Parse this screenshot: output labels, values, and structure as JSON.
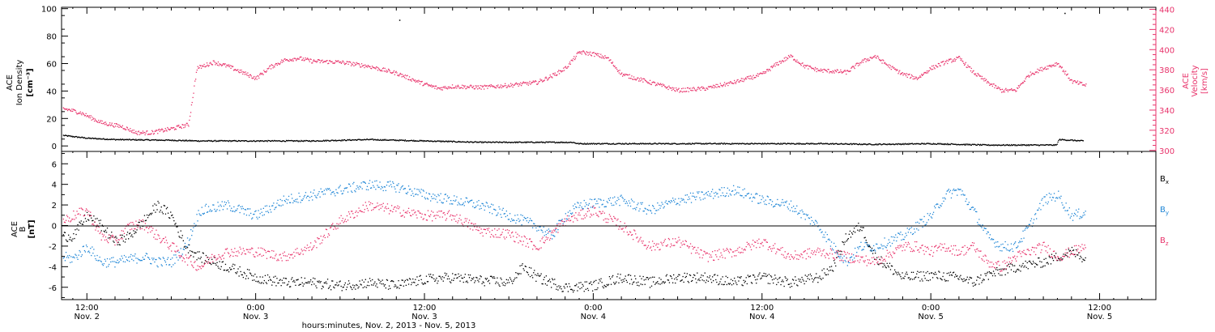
{
  "colors": {
    "density": "#000000",
    "velocity": "#e8336b",
    "bx": "#000000",
    "by": "#1f86d6",
    "bz": "#e8336b"
  },
  "x_axis": {
    "label": "hours:minutes, Nov. 2, 2013 - Nov. 5, 2013",
    "ticks": [
      {
        "h": 12,
        "time": "12:00",
        "day": "Nov. 2"
      },
      {
        "h": 24,
        "time": "0:00",
        "day": "Nov. 3"
      },
      {
        "h": 36,
        "time": "12:00",
        "day": "Nov. 3"
      },
      {
        "h": 48,
        "time": "0:00",
        "day": "Nov. 4"
      },
      {
        "h": 60,
        "time": "12:00",
        "day": "Nov. 4"
      },
      {
        "h": 72,
        "time": "0:00",
        "day": "Nov. 5"
      },
      {
        "h": 84,
        "time": "12:00",
        "day": "Nov. 5"
      }
    ]
  },
  "chart_data": [
    {
      "type": "scatter",
      "title": "",
      "x_units": "hours from 2013-11-02 00:00",
      "xlim": [
        10.2,
        88.0
      ],
      "left_axis": {
        "label_lines": [
          "ACE",
          "Ion Density",
          "[cm⁻³]"
        ],
        "ylim": [
          -4,
          101
        ],
        "ticks": [
          0,
          20,
          40,
          60,
          80,
          100
        ]
      },
      "right_axis": {
        "label_lines": [
          "ACE",
          "Velocity",
          "[km/s]"
        ],
        "ylim": [
          299,
          442
        ],
        "ticks": [
          300,
          320,
          340,
          360,
          380,
          400,
          420,
          440
        ]
      },
      "series": [
        {
          "name": "Ion Density",
          "axis": "left",
          "spread": 0.4,
          "points": [
            [
              10.3,
              8
            ],
            [
              12,
              6
            ],
            [
              14,
              5
            ],
            [
              18,
              4.5
            ],
            [
              20,
              4
            ],
            [
              24,
              4
            ],
            [
              28,
              4
            ],
            [
              32,
              5
            ],
            [
              36,
              4
            ],
            [
              40,
              3
            ],
            [
              44,
              3
            ],
            [
              46.5,
              3
            ],
            [
              46.9,
              2
            ],
            [
              48,
              2
            ],
            [
              52,
              2
            ],
            [
              56,
              2
            ],
            [
              60,
              2
            ],
            [
              64,
              2
            ],
            [
              68,
              1.5
            ],
            [
              72,
              2
            ],
            [
              76,
              1
            ],
            [
              80,
              1
            ],
            [
              80.9,
              1
            ],
            [
              81.1,
              5
            ],
            [
              82.8,
              4
            ]
          ]
        },
        {
          "name": "Velocity",
          "axis": "right",
          "spread": 2,
          "points": [
            [
              10.3,
              342
            ],
            [
              11.5,
              338
            ],
            [
              13,
              328
            ],
            [
              14.5,
              324
            ],
            [
              15.5,
              318
            ],
            [
              16.5,
              318
            ],
            [
              18,
              322
            ],
            [
              19.2,
              326
            ],
            [
              19.8,
              382
            ],
            [
              21,
              388
            ],
            [
              22,
              384
            ],
            [
              23,
              378
            ],
            [
              24,
              372
            ],
            [
              25,
              383
            ],
            [
              26,
              390
            ],
            [
              27,
              392
            ],
            [
              28,
              389
            ],
            [
              30,
              388
            ],
            [
              32,
              384
            ],
            [
              34,
              377
            ],
            [
              36,
              366
            ],
            [
              37,
              362
            ],
            [
              38,
              364
            ],
            [
              40,
              363
            ],
            [
              42,
              365
            ],
            [
              44,
              368
            ],
            [
              45,
              374
            ],
            [
              46,
              382
            ],
            [
              46.5,
              390
            ],
            [
              47,
              398
            ],
            [
              48,
              396
            ],
            [
              49,
              392
            ],
            [
              50,
              376
            ],
            [
              51,
              372
            ],
            [
              52,
              368
            ],
            [
              54,
              360
            ],
            [
              56,
              362
            ],
            [
              58,
              368
            ],
            [
              60,
              376
            ],
            [
              61,
              386
            ],
            [
              62,
              394
            ],
            [
              63,
              384
            ],
            [
              64,
              380
            ],
            [
              66,
              378
            ],
            [
              67,
              388
            ],
            [
              68,
              394
            ],
            [
              69,
              384
            ],
            [
              70,
              376
            ],
            [
              71,
              372
            ],
            [
              72,
              382
            ],
            [
              73,
              388
            ],
            [
              74,
              392
            ],
            [
              75,
              378
            ],
            [
              76,
              368
            ],
            [
              77,
              360
            ],
            [
              78,
              360
            ],
            [
              79,
              376
            ],
            [
              80,
              382
            ],
            [
              81,
              387
            ],
            [
              82,
              369
            ],
            [
              83,
              365
            ]
          ]
        }
      ],
      "outliers": [
        [
          34.2,
          92
        ],
        [
          81.5,
          97
        ]
      ]
    },
    {
      "type": "scatter",
      "title": "",
      "x_units": "hours from 2013-11-02 00:00",
      "xlim": [
        10.2,
        88.0
      ],
      "y_axis": {
        "label_lines": [
          "ACE",
          "B",
          "[nT]"
        ],
        "ylim": [
          -7.2,
          7.2
        ],
        "ticks": [
          -6,
          -4,
          -2,
          0,
          2,
          4,
          6
        ],
        "zero_line": true
      },
      "legend": {
        "placement": "right",
        "entries": [
          {
            "text": "B",
            "sub": "x",
            "color": "#000000"
          },
          {
            "text": "B",
            "sub": "y",
            "color": "#1f86d6"
          },
          {
            "text": "B",
            "sub": "z",
            "color": "#e8336b"
          }
        ]
      },
      "series": [
        {
          "name": "Bx",
          "spread": 0.5,
          "points": [
            [
              10.3,
              -1
            ],
            [
              11,
              -1
            ],
            [
              12,
              1
            ],
            [
              13,
              0
            ],
            [
              14,
              -1.5
            ],
            [
              15,
              -1
            ],
            [
              16,
              0.5
            ],
            [
              17,
              2
            ],
            [
              18,
              1
            ],
            [
              19,
              -2
            ],
            [
              20,
              -3
            ],
            [
              21,
              -3.5
            ],
            [
              22,
              -4
            ],
            [
              24,
              -5
            ],
            [
              26,
              -5.5
            ],
            [
              28,
              -5.5
            ],
            [
              30,
              -5.8
            ],
            [
              32,
              -5.5
            ],
            [
              34,
              -5.8
            ],
            [
              36,
              -5.2
            ],
            [
              38,
              -5
            ],
            [
              40,
              -5.3
            ],
            [
              42,
              -5.5
            ],
            [
              43,
              -4
            ],
            [
              44,
              -5
            ],
            [
              45,
              -5.5
            ],
            [
              46,
              -6
            ],
            [
              48,
              -5.8
            ],
            [
              50,
              -5
            ],
            [
              52,
              -5.5
            ],
            [
              54,
              -5
            ],
            [
              56,
              -5
            ],
            [
              58,
              -5.5
            ],
            [
              60,
              -5
            ],
            [
              62,
              -5.5
            ],
            [
              64,
              -5
            ],
            [
              65,
              -4
            ],
            [
              66,
              -1
            ],
            [
              67,
              0
            ],
            [
              68,
              -3
            ],
            [
              70,
              -5
            ],
            [
              72,
              -4.8
            ],
            [
              74,
              -5
            ],
            [
              75,
              -5.5
            ],
            [
              76,
              -4.8
            ],
            [
              78,
              -4
            ],
            [
              80,
              -3.5
            ],
            [
              82,
              -2.5
            ],
            [
              83,
              -3.2
            ]
          ]
        },
        {
          "name": "By",
          "spread": 0.5,
          "points": [
            [
              10.3,
              -3
            ],
            [
              11,
              -3.2
            ],
            [
              12,
              -2
            ],
            [
              13,
              -3.5
            ],
            [
              14,
              -3.5
            ],
            [
              16,
              -3
            ],
            [
              17,
              -3.5
            ],
            [
              18,
              -3.5
            ],
            [
              19,
              -2
            ],
            [
              20,
              1.5
            ],
            [
              22,
              2
            ],
            [
              24,
              1
            ],
            [
              26,
              2.5
            ],
            [
              28,
              3
            ],
            [
              30,
              3.5
            ],
            [
              32,
              4
            ],
            [
              34,
              3.8
            ],
            [
              36,
              3
            ],
            [
              38,
              2.5
            ],
            [
              40,
              2
            ],
            [
              42,
              1
            ],
            [
              44,
              0
            ],
            [
              45,
              -1
            ],
            [
              46,
              1
            ],
            [
              47,
              2
            ],
            [
              48,
              2.2
            ],
            [
              50,
              2.5
            ],
            [
              52,
              1.5
            ],
            [
              54,
              2.5
            ],
            [
              56,
              3
            ],
            [
              58,
              3.5
            ],
            [
              60,
              2.5
            ],
            [
              62,
              2
            ],
            [
              64,
              0
            ],
            [
              65,
              -2
            ],
            [
              66,
              -3.5
            ],
            [
              67,
              -2
            ],
            [
              68,
              -2
            ],
            [
              70,
              -1
            ],
            [
              72,
              1
            ],
            [
              73,
              3
            ],
            [
              74,
              3.5
            ],
            [
              75,
              1.5
            ],
            [
              76,
              -1
            ],
            [
              77,
              -2
            ],
            [
              78,
              -2
            ],
            [
              79,
              0
            ],
            [
              80,
              2.5
            ],
            [
              81,
              3
            ],
            [
              82,
              1
            ],
            [
              83,
              1.3
            ]
          ]
        },
        {
          "name": "Bz",
          "spread": 0.5,
          "points": [
            [
              10.3,
              0.5
            ],
            [
              11,
              1
            ],
            [
              12,
              1.5
            ],
            [
              13,
              -1
            ],
            [
              14,
              -1.5
            ],
            [
              15,
              0
            ],
            [
              16,
              0.2
            ],
            [
              17,
              -1
            ],
            [
              18,
              -2
            ],
            [
              19,
              -3.2
            ],
            [
              20,
              -4
            ],
            [
              21,
              -3
            ],
            [
              22,
              -2.5
            ],
            [
              24,
              -2.5
            ],
            [
              26,
              -3
            ],
            [
              28,
              -2
            ],
            [
              30,
              0.5
            ],
            [
              32,
              2
            ],
            [
              34,
              1.5
            ],
            [
              36,
              1
            ],
            [
              38,
              1
            ],
            [
              40,
              -0.5
            ],
            [
              42,
              -0.8
            ],
            [
              44,
              -2
            ],
            [
              46,
              0.5
            ],
            [
              47,
              1
            ],
            [
              48,
              1.5
            ],
            [
              50,
              0
            ],
            [
              52,
              -2
            ],
            [
              54,
              -1.5
            ],
            [
              56,
              -3
            ],
            [
              58,
              -2.5
            ],
            [
              60,
              -1.5
            ],
            [
              62,
              -3
            ],
            [
              64,
              -2.5
            ],
            [
              66,
              -3
            ],
            [
              68,
              -3.5
            ],
            [
              70,
              -2
            ],
            [
              71,
              -2
            ],
            [
              72,
              -2.5
            ],
            [
              73,
              -2
            ],
            [
              74,
              -2.5
            ],
            [
              75,
              -2
            ],
            [
              76,
              -3.5
            ],
            [
              77,
              -4
            ],
            [
              78,
              -3
            ],
            [
              80,
              -2
            ],
            [
              81,
              -3
            ],
            [
              82,
              -2.5
            ],
            [
              83,
              -2
            ]
          ]
        }
      ]
    }
  ]
}
